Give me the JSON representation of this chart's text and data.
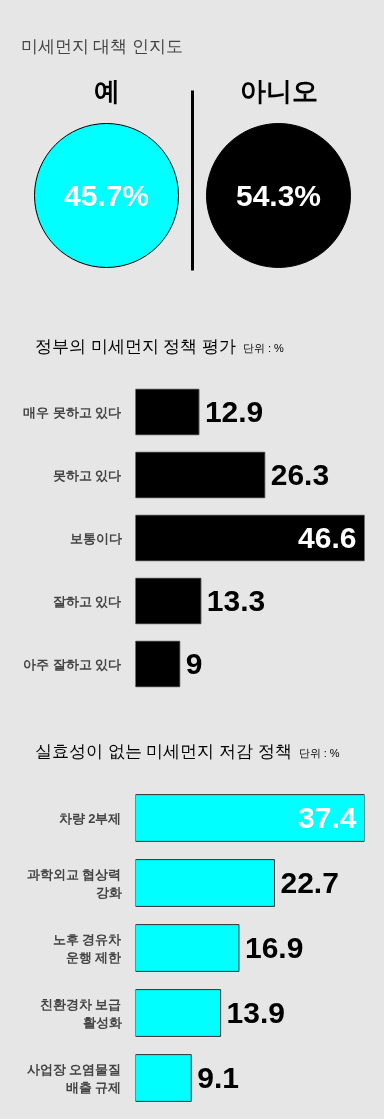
{
  "chart_data": [
    {
      "type": "other",
      "title": "미세먼지 대책 인지도",
      "categories": [
        "예",
        "아니오"
      ],
      "values": [
        45.7,
        54.3
      ],
      "colors": [
        "#00ffff",
        "#000000"
      ],
      "value_labels": [
        "45.7%",
        "54.3%"
      ]
    },
    {
      "type": "bar",
      "orientation": "horizontal",
      "title": "정부의 미세먼지 정책 평가",
      "subtitle": "단위 : %",
      "categories": [
        "매우 못하고 있다",
        "못하고 있다",
        "보통이다",
        "잘하고 있다",
        "아주 잘하고 있다"
      ],
      "values": [
        12.9,
        26.3,
        46.6,
        13.3,
        9
      ],
      "color": "#000000",
      "data_labels": true,
      "tick_labels": "y"
    },
    {
      "type": "bar",
      "orientation": "horizontal",
      "title": "실효성이 없는 미세먼지 저감 정책",
      "subtitle": "단위 : %",
      "categories": [
        "차량 2부제",
        "과학외교 협상력\n강화",
        "노후 경유차\n운행 제한",
        "친환경차 보급\n활성화",
        "사업장 오염물질\n배출 규제"
      ],
      "values": [
        37.4,
        22.7,
        16.9,
        13.9,
        9.1
      ],
      "color": "#00ffff",
      "data_labels": true,
      "tick_labels": "y"
    }
  ]
}
